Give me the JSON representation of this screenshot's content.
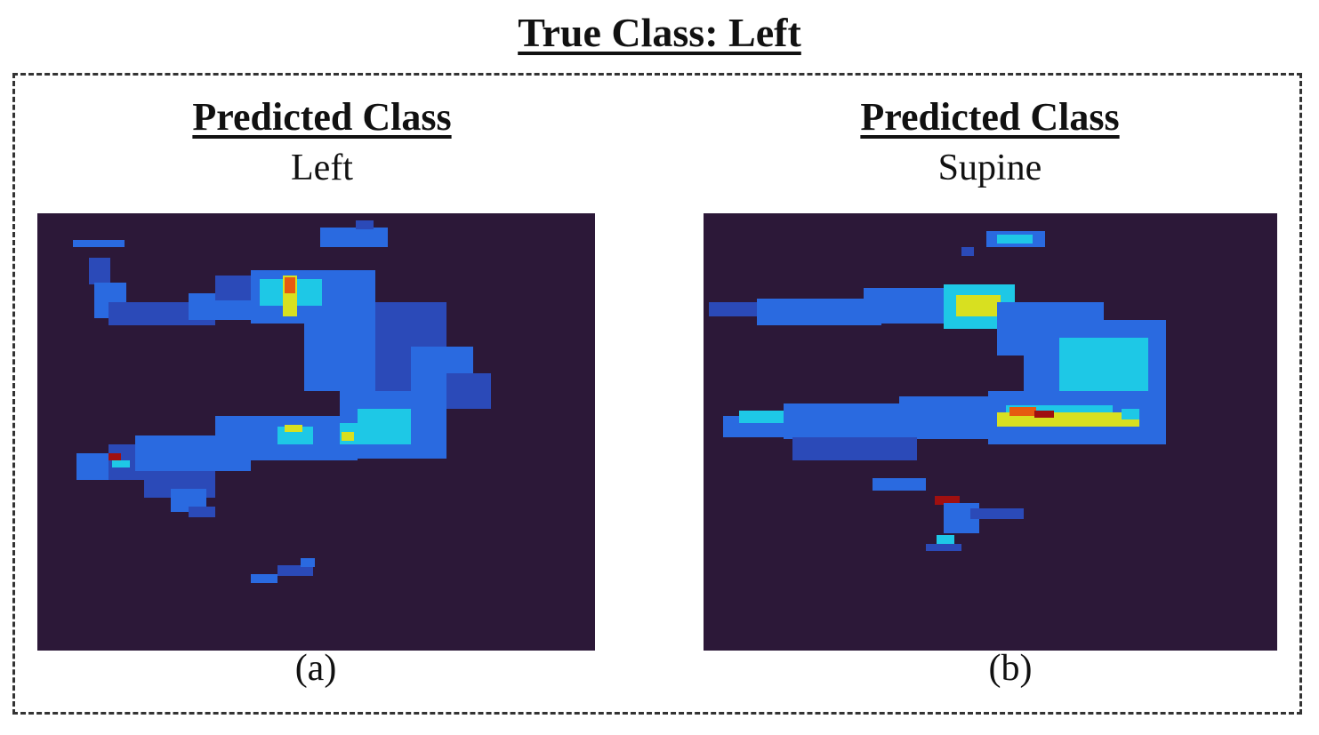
{
  "title": "True Class: Left",
  "panels": [
    {
      "heading": "Predicted Class",
      "predicted": "Left",
      "caption": "(a)"
    },
    {
      "heading": "Predicted Class",
      "predicted": "Supine",
      "caption": "(b)"
    }
  ],
  "colors": {
    "background": "#2c1838",
    "low": "#2b4ab8",
    "mid": "#2a6ae0",
    "cyan": "#1ec8e6",
    "yellow": "#d8e020",
    "orange": "#e65a10",
    "red": "#a01010"
  }
}
